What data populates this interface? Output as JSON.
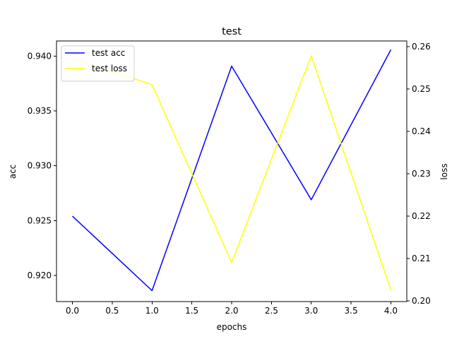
{
  "chart_data": {
    "type": "line",
    "title": "test",
    "xlabel": "epochs",
    "ylabel": "acc",
    "ylabel_right": "loss",
    "x": [
      0,
      1,
      2,
      3,
      4
    ],
    "xlim": [
      -0.2,
      4.2
    ],
    "ylim": [
      0.9176,
      0.9414
    ],
    "ylim_right": [
      0.1998,
      0.2613
    ],
    "x_ticks": [
      "0.0",
      "0.5",
      "1.0",
      "1.5",
      "2.0",
      "2.5",
      "3.0",
      "3.5",
      "4.0"
    ],
    "y_ticks": [
      "0.920",
      "0.925",
      "0.930",
      "0.935",
      "0.940"
    ],
    "y_ticks_right": [
      "0.20",
      "0.21",
      "0.22",
      "0.23",
      "0.24",
      "0.25",
      "0.26"
    ],
    "series": [
      {
        "name": "test acc",
        "axis": "left",
        "color": "#0000ff",
        "values": [
          0.9254,
          0.9186,
          0.9391,
          0.9269,
          0.9406
        ]
      },
      {
        "name": "test loss",
        "axis": "right",
        "color": "#ffff00",
        "values": [
          0.2572,
          0.251,
          0.209,
          0.2578,
          0.2025
        ]
      }
    ],
    "legend": "upper-left",
    "grid": false
  }
}
